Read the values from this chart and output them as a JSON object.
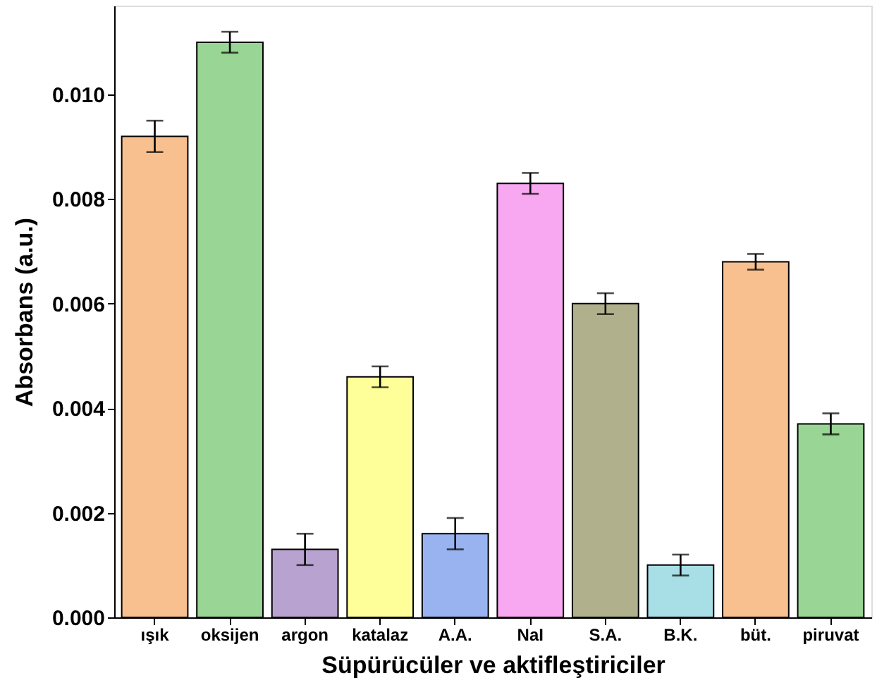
{
  "chart_data": {
    "type": "bar",
    "xlabel": "Süpürücüler ve aktifleştiriciler",
    "ylabel": "Absorbans (a.u.)",
    "categories": [
      "ışık",
      "oksijen",
      "argon",
      "katalaz",
      "A.A.",
      "NaI",
      "S.A.",
      "B.K.",
      "büt.",
      "piruvat"
    ],
    "values": [
      0.0092,
      0.011,
      0.0013,
      0.0046,
      0.0016,
      0.0083,
      0.006,
      0.001,
      0.0068,
      0.0037
    ],
    "errors": [
      0.0003,
      0.0002,
      0.0003,
      0.0002,
      0.0003,
      0.0002,
      0.0002,
      0.0002,
      0.00015,
      0.0002
    ],
    "colors": [
      "#f9c08f",
      "#99d594",
      "#b8a2cf",
      "#ffff99",
      "#99b3f0",
      "#f7a8f0",
      "#b0b08c",
      "#a8dfe6",
      "#f9c08f",
      "#99d594"
    ],
    "ylim": [
      0,
      0.0117
    ],
    "yticks": [
      {
        "value": 0,
        "label": "0.000"
      },
      {
        "value": 0.002,
        "label": "0.002"
      },
      {
        "value": 0.004,
        "label": "0.004"
      },
      {
        "value": 0.006,
        "label": "0.006"
      },
      {
        "value": 0.008,
        "label": "0.008"
      },
      {
        "value": 0.01,
        "label": "0.010"
      }
    ],
    "grid": false
  }
}
